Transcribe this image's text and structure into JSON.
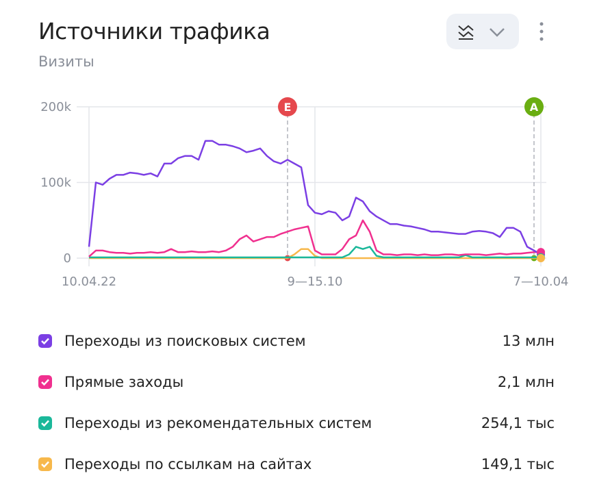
{
  "chart_data": {
    "type": "line",
    "title": "Источники трафика",
    "subtitle": "Визиты",
    "categories": [
      "10.04.22",
      null,
      null,
      null,
      null,
      null,
      null,
      null,
      null,
      null,
      null,
      null,
      null,
      null,
      null,
      null,
      null,
      null,
      null,
      null,
      null,
      null,
      null,
      null,
      null,
      null,
      null,
      null,
      null,
      null,
      null,
      null,
      null,
      "9—15.10",
      null,
      null,
      null,
      null,
      null,
      null,
      null,
      null,
      null,
      null,
      null,
      null,
      null,
      null,
      null,
      null,
      null,
      null,
      null,
      null,
      null,
      null,
      null,
      null,
      null,
      null,
      null,
      null,
      null,
      null,
      null,
      null,
      "7—10.04"
    ],
    "ylim": [
      0,
      200000
    ],
    "yticks": [
      0,
      {
        "value": 100000,
        "label": "100k"
      },
      {
        "value": 200000,
        "label": "200k"
      }
    ],
    "grid": true,
    "annotations": [
      {
        "label": "E",
        "at": 29,
        "color": "#e5484d"
      },
      {
        "label": "A",
        "at": 65,
        "color": "#6aae12"
      }
    ],
    "series": [
      {
        "name": "Переходы из поисковых систем",
        "total": "13 млн",
        "color": "#7b3fe4",
        "values": [
          15000,
          100000,
          97000,
          105000,
          110000,
          110000,
          113000,
          112000,
          110000,
          112000,
          108000,
          125000,
          125000,
          132000,
          135000,
          135000,
          130000,
          155000,
          155000,
          150000,
          150000,
          148000,
          145000,
          140000,
          142000,
          145000,
          135000,
          128000,
          125000,
          130000,
          125000,
          120000,
          70000,
          60000,
          58000,
          62000,
          60000,
          50000,
          55000,
          80000,
          75000,
          62000,
          55000,
          50000,
          45000,
          45000,
          43000,
          42000,
          40000,
          38000,
          35000,
          35000,
          34000,
          33000,
          32000,
          32000,
          35000,
          36000,
          35000,
          33000,
          28000,
          40000,
          40000,
          35000,
          15000,
          10000,
          5000
        ]
      },
      {
        "name": "Прямые заходы",
        "total": "2,1 млн",
        "color": "#f0308f",
        "values": [
          2000,
          10000,
          10000,
          8000,
          7000,
          7000,
          6000,
          7000,
          7000,
          8000,
          7000,
          8000,
          12000,
          8000,
          8000,
          9000,
          8000,
          8000,
          9000,
          8000,
          10000,
          15000,
          25000,
          30000,
          22000,
          25000,
          28000,
          28000,
          32000,
          35000,
          38000,
          40000,
          42000,
          10000,
          5000,
          5000,
          5000,
          12000,
          25000,
          30000,
          50000,
          35000,
          10000,
          5000,
          5000,
          4000,
          5000,
          5000,
          4000,
          5000,
          4000,
          4000,
          5000,
          5000,
          4000,
          5000,
          5000,
          5000,
          4000,
          5000,
          6000,
          5000,
          6000,
          6000,
          7000,
          8000,
          8000
        ]
      },
      {
        "name": "Переходы из рекомендательных систем",
        "total": "254,1 тыс",
        "color": "#1bb89a",
        "values": [
          1000,
          1000,
          1000,
          1000,
          1000,
          1000,
          1000,
          1000,
          1000,
          1000,
          1000,
          1000,
          1000,
          1000,
          1000,
          1000,
          1000,
          1000,
          1000,
          1000,
          1000,
          1000,
          1000,
          1000,
          1000,
          1000,
          1000,
          1000,
          1000,
          1000,
          1000,
          1000,
          1000,
          1000,
          1000,
          1000,
          1000,
          1000,
          5000,
          15000,
          12000,
          15000,
          3000,
          1000,
          1000,
          1000,
          1000,
          1000,
          1000,
          1000,
          1000,
          1000,
          1000,
          1000,
          1000,
          4000,
          1000,
          1000,
          1000,
          1000,
          1000,
          1000,
          1000,
          1000,
          1000,
          1000,
          1000
        ]
      },
      {
        "name": "Переходы по ссылкам на сайтах",
        "total": "149,1 тыс",
        "color": "#f7b84b",
        "values": [
          0,
          0,
          0,
          0,
          0,
          0,
          0,
          0,
          0,
          0,
          0,
          0,
          0,
          0,
          0,
          0,
          0,
          0,
          0,
          0,
          0,
          0,
          0,
          0,
          0,
          0,
          0,
          0,
          0,
          0,
          5000,
          12000,
          12000,
          3000,
          0,
          0,
          0,
          0,
          0,
          0,
          0,
          0,
          0,
          0,
          0,
          0,
          0,
          0,
          0,
          0,
          0,
          0,
          0,
          0,
          0,
          0,
          0,
          0,
          0,
          0,
          0,
          0,
          0,
          0,
          0,
          0,
          0
        ]
      }
    ]
  }
}
